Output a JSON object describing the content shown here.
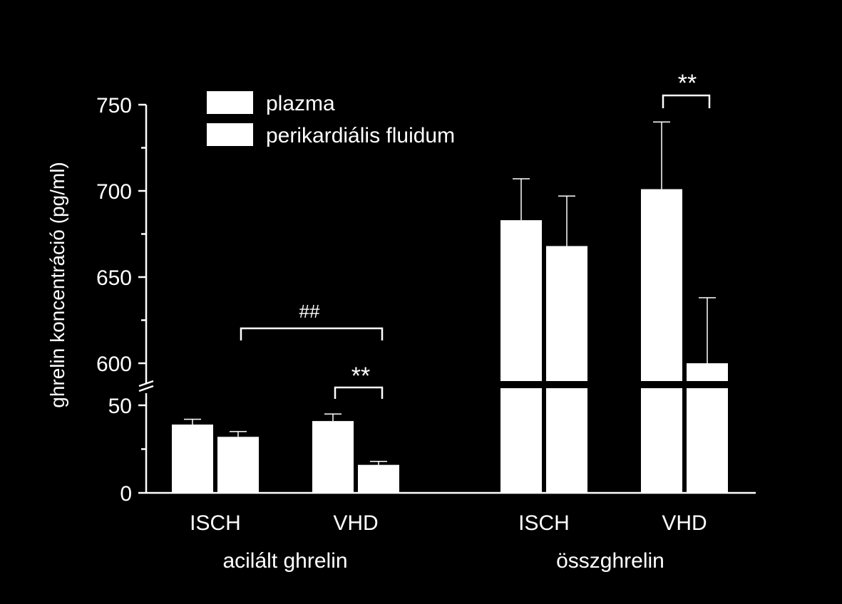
{
  "chart_data": {
    "type": "bar",
    "ylabel": "ghrelin koncentráció (pg/ml)",
    "axis_break": true,
    "ylim_lower": [
      0,
      50
    ],
    "ylim_upper": [
      600,
      750
    ],
    "yticks_lower": [
      "0",
      "50"
    ],
    "yticks_upper": [
      "600",
      "650",
      "700",
      "750"
    ],
    "groups": [
      {
        "label": "acilált ghrelin",
        "categories": [
          "ISCH",
          "VHD"
        ]
      },
      {
        "label": "összghrelin",
        "categories": [
          "ISCH",
          "VHD"
        ]
      }
    ],
    "series": [
      {
        "name": "plazma",
        "values": [
          39,
          41,
          683,
          701
        ],
        "errors": [
          3,
          4,
          24,
          39
        ]
      },
      {
        "name": "perikardiális fluidum",
        "values": [
          32,
          16,
          668,
          600
        ],
        "errors": [
          3,
          2,
          29,
          38
        ]
      }
    ],
    "annotations": [
      {
        "text": "##",
        "between": "acilált ghrelin ISCH – VHD"
      },
      {
        "text": "**",
        "between": "acilált ghrelin VHD plazma – perikardiális fluidum"
      },
      {
        "text": "**",
        "between": "összghrelin VHD plazma – perikardiális fluidum"
      }
    ],
    "legend_position": "top-left",
    "colors": {
      "background": "#000000",
      "foreground": "#ffffff"
    }
  }
}
